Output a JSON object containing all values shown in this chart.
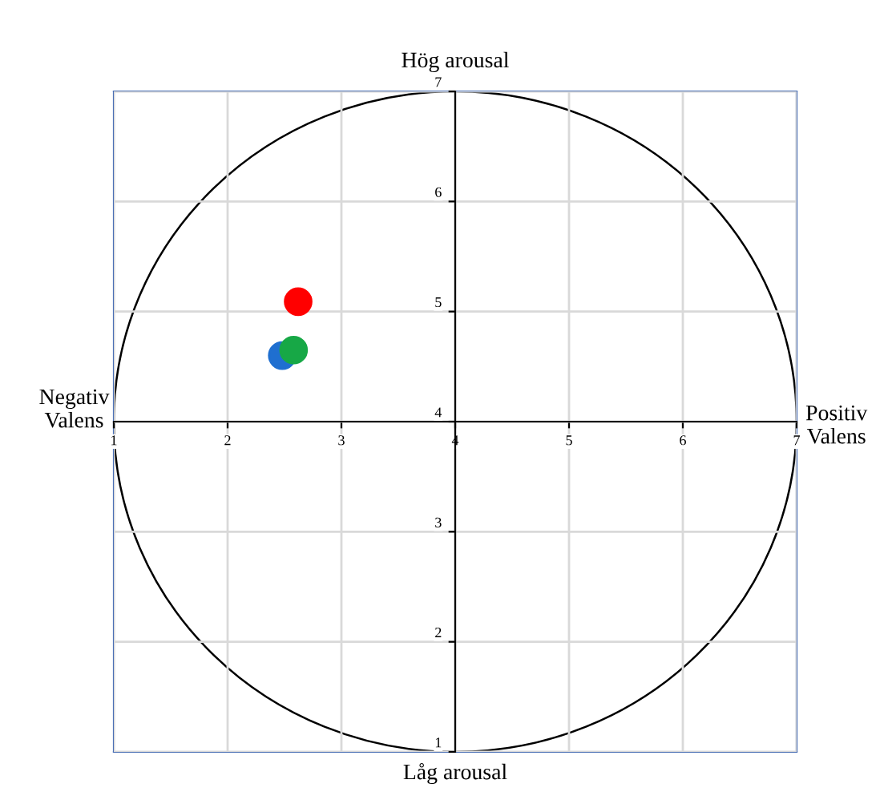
{
  "chart_data": {
    "type": "scatter",
    "title": "Hög arousal",
    "xlabel": "Låg arousal",
    "ylabel": "Negativ\nValens",
    "y2label": "Positiv\nValens",
    "x": [
      2.62,
      2.48,
      2.58
    ],
    "values": [
      5.09,
      4.6,
      4.65
    ],
    "colors": [
      "#ff0000",
      "#1f6fd0",
      "#17a846"
    ],
    "marker": "circle",
    "xlim": [
      1,
      7
    ],
    "ylim": [
      1,
      7
    ],
    "xticks": [
      1,
      2,
      3,
      4,
      5,
      6,
      7
    ],
    "yticks": [
      1,
      2,
      3,
      4,
      5,
      6,
      7
    ],
    "grid": true
  }
}
